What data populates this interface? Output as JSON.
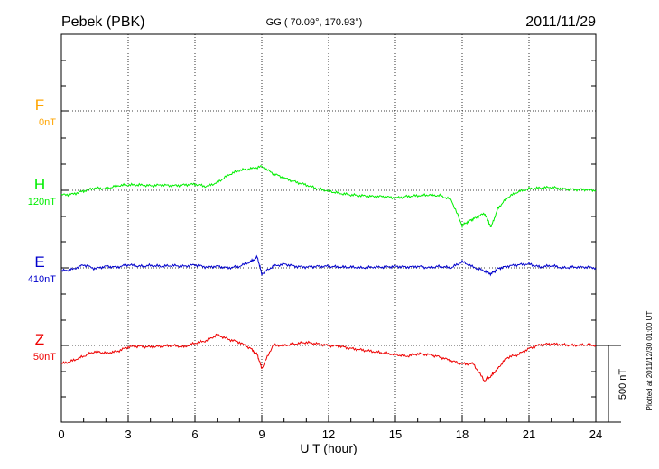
{
  "header": {
    "station": "Pebek (PBK)",
    "coords": "GG ( 70.09°, 170.93°)",
    "date": "2011/11/29"
  },
  "footer": {
    "plotted": "Plotted at 2011/12/30 01:00 UT"
  },
  "chart_data": {
    "type": "line",
    "title": "Pebek (PBK)",
    "xlabel": "U T (hour)",
    "ylabel": "",
    "xlim": [
      0,
      24
    ],
    "xticks": [
      0,
      3,
      6,
      9,
      12,
      15,
      18,
      21,
      24
    ],
    "grid": true,
    "scale_bar": {
      "label": "500 nT",
      "value_nT": 500
    },
    "series": [
      {
        "name": "F",
        "baseline_label": "0nT",
        "color": "#ffa500",
        "x": [],
        "y": []
      },
      {
        "name": "H",
        "baseline_label": "120nT",
        "color": "#00ee00",
        "x": [
          0,
          0.5,
          1,
          1.5,
          2,
          2.5,
          3,
          3.5,
          4,
          4.5,
          5,
          5.5,
          6,
          6.5,
          7,
          7.5,
          8,
          8.5,
          9,
          9.5,
          10,
          10.5,
          11,
          11.5,
          12,
          12.5,
          13,
          13.5,
          14,
          14.5,
          15,
          15.5,
          16,
          16.5,
          17,
          17.5,
          18,
          18.3,
          18.6,
          19,
          19.3,
          19.6,
          20,
          20.5,
          21,
          21.5,
          22,
          22.5,
          23,
          23.5,
          24
        ],
        "y": [
          -30,
          -25,
          -5,
          15,
          10,
          30,
          35,
          35,
          30,
          35,
          30,
          35,
          40,
          25,
          50,
          100,
          130,
          140,
          155,
          110,
          80,
          55,
          35,
          10,
          -5,
          -20,
          -30,
          -35,
          -40,
          -40,
          -50,
          -40,
          -35,
          -30,
          -35,
          -60,
          -230,
          -200,
          -180,
          -150,
          -240,
          -120,
          -50,
          -10,
          10,
          15,
          20,
          10,
          5,
          5,
          0
        ]
      },
      {
        "name": "E",
        "baseline_label": "410nT",
        "color": "#0000cc",
        "x": [
          0,
          0.5,
          1,
          1.5,
          2,
          2.5,
          3,
          3.5,
          4,
          4.5,
          5,
          5.5,
          6,
          6.5,
          7,
          7.5,
          8,
          8.5,
          8.8,
          9,
          9.5,
          10,
          10.5,
          11,
          11.5,
          12,
          12.5,
          13,
          13.5,
          14,
          14.5,
          15,
          15.5,
          16,
          16.5,
          17,
          17.5,
          18,
          18.5,
          19,
          19.3,
          19.6,
          20,
          20.5,
          21,
          21.5,
          22,
          22.5,
          23,
          23.5,
          24
        ],
        "y": [
          -20,
          -10,
          20,
          -5,
          10,
          5,
          20,
          10,
          15,
          10,
          15,
          10,
          20,
          5,
          10,
          0,
          10,
          40,
          70,
          -40,
          10,
          25,
          10,
          5,
          10,
          10,
          5,
          5,
          0,
          5,
          5,
          10,
          5,
          10,
          0,
          10,
          0,
          40,
          5,
          -20,
          -40,
          -5,
          10,
          20,
          25,
          5,
          15,
          0,
          5,
          5,
          0
        ]
      },
      {
        "name": "Z",
        "baseline_label": "50nT",
        "color": "#ee0000",
        "x": [
          0,
          0.5,
          1,
          1.5,
          2,
          2.5,
          3,
          3.5,
          4,
          4.5,
          5,
          5.5,
          6,
          6.5,
          7,
          7.5,
          8,
          8.5,
          8.8,
          9,
          9.5,
          10,
          10.5,
          11,
          11.5,
          12,
          12.5,
          13,
          13.5,
          14,
          14.5,
          15,
          15.5,
          16,
          16.5,
          17,
          17.5,
          18,
          18.5,
          19,
          19.3,
          19.6,
          20,
          20.5,
          21,
          21.5,
          22,
          22.5,
          23,
          23.5,
          24
        ],
        "y": [
          -120,
          -100,
          -70,
          -40,
          -50,
          -40,
          -10,
          -5,
          -10,
          -5,
          0,
          -10,
          15,
          30,
          70,
          40,
          20,
          -20,
          -60,
          -150,
          0,
          0,
          10,
          20,
          10,
          0,
          -5,
          -20,
          -30,
          -40,
          -50,
          -60,
          -70,
          -55,
          -60,
          -75,
          -100,
          -120,
          -120,
          -230,
          -200,
          -150,
          -80,
          -60,
          -20,
          5,
          10,
          5,
          0,
          5,
          0
        ]
      }
    ]
  }
}
